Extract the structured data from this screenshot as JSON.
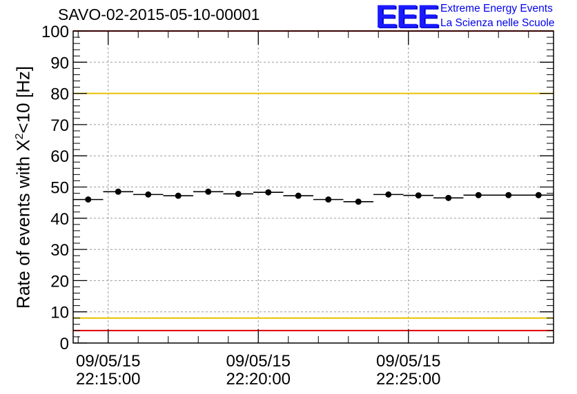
{
  "header": {
    "title": "SAVO-02-2015-05-10-00001",
    "logo_text": "EEE",
    "logo_line1": "Extreme Energy Events",
    "logo_line2": "La Scienza nelle Scuole"
  },
  "chart_data": {
    "type": "scatter",
    "title": "SAVO-02-2015-05-10-00001",
    "ylabel_prefix": "Rate of events with X",
    "ylabel_sup": "2",
    "ylabel_suffix": "<10 [Hz]",
    "ylim": [
      0,
      100
    ],
    "yticks": [
      0,
      10,
      20,
      30,
      40,
      50,
      60,
      70,
      80,
      90,
      100
    ],
    "xlim": [
      "2015-05-09T22:13:50",
      "2015-05-09T22:29:50"
    ],
    "xticks": [
      {
        "date": "09/05/15",
        "time": "22:15:00"
      },
      {
        "date": "09/05/15",
        "time": "22:20:00"
      },
      {
        "date": "09/05/15",
        "time": "22:25:00"
      }
    ],
    "grid": true,
    "bin_width_seconds": 60,
    "series": [
      {
        "x": [
          "2015-05-09T22:14:20",
          "2015-05-09T22:15:20",
          "2015-05-09T22:16:20",
          "2015-05-09T22:17:20",
          "2015-05-09T22:18:20",
          "2015-05-09T22:19:20",
          "2015-05-09T22:20:20",
          "2015-05-09T22:21:20",
          "2015-05-09T22:22:20",
          "2015-05-09T22:23:20",
          "2015-05-09T22:24:20",
          "2015-05-09T22:25:20",
          "2015-05-09T22:26:20",
          "2015-05-09T22:27:20",
          "2015-05-09T22:28:20",
          "2015-05-09T22:29:20"
        ],
        "y": [
          46.0,
          48.5,
          47.6,
          47.2,
          48.5,
          47.8,
          48.3,
          47.2,
          46.0,
          45.3,
          47.6,
          47.3,
          46.5,
          47.4,
          47.4,
          47.4
        ],
        "color": "#000000"
      }
    ],
    "reference_lines": [
      {
        "y": 80,
        "color": "#e6c200"
      },
      {
        "y": 8,
        "color": "#e6c200"
      },
      {
        "y": 4,
        "color": "#e00000"
      },
      {
        "y": 100,
        "color": "#e00000"
      }
    ]
  }
}
